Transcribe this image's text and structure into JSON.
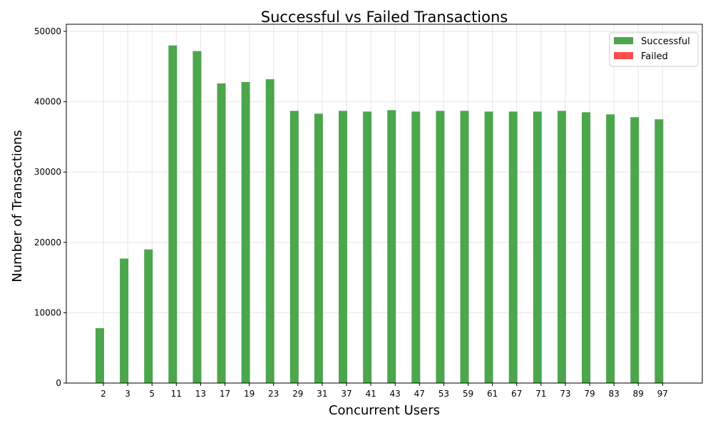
{
  "chart_data": {
    "type": "bar",
    "title": "Successful vs Failed Transactions",
    "xlabel": "Concurrent Users",
    "ylabel": "Number of Transactions",
    "categories": [
      "2",
      "3",
      "5",
      "11",
      "13",
      "17",
      "19",
      "23",
      "29",
      "31",
      "37",
      "41",
      "43",
      "47",
      "53",
      "59",
      "61",
      "67",
      "71",
      "73",
      "79",
      "83",
      "89",
      "97"
    ],
    "series": [
      {
        "name": "Successful",
        "color": "#4ca64c",
        "values": [
          7800,
          17700,
          19000,
          48000,
          47200,
          42600,
          42800,
          43200,
          38700,
          38300,
          38700,
          38600,
          38800,
          38600,
          38700,
          38700,
          38600,
          38600,
          38600,
          38700,
          38500,
          38200,
          37800,
          37500
        ]
      },
      {
        "name": "Failed",
        "color": "#ff4c4c",
        "values": [
          0,
          0,
          0,
          0,
          0,
          0,
          0,
          0,
          0,
          0,
          0,
          0,
          0,
          0,
          0,
          0,
          0,
          0,
          0,
          0,
          0,
          0,
          0,
          0
        ]
      }
    ],
    "ylim": [
      0,
      50000
    ],
    "yticks": [
      "0",
      "10000",
      "20000",
      "30000",
      "40000",
      "50000"
    ],
    "grid": true,
    "legend": "top-right"
  }
}
